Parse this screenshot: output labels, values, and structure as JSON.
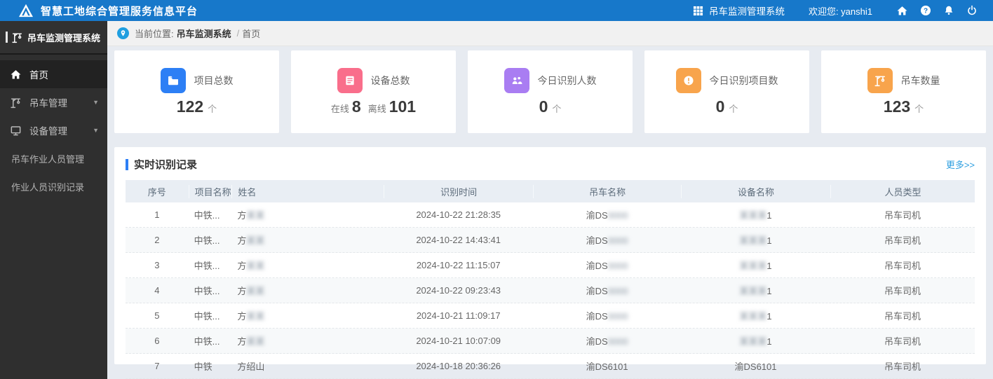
{
  "colors": {
    "topbar_blue": "#1778ca",
    "accent_blue": "#2d7ff5",
    "link_blue": "#2e9fe0",
    "sidebar_dark": "#2f2f2f"
  },
  "topbar": {
    "title": "智慧工地综合管理服务信息平台",
    "system_switcher": "吊车监测管理系统",
    "welcome": "欢迎您: yanshi1",
    "icons": [
      "grid-icon",
      "home-icon",
      "question-icon",
      "bell-icon",
      "power-icon"
    ]
  },
  "sidebar": {
    "title": "吊车监测管理系统",
    "items": [
      {
        "label": "首页",
        "icon": "home",
        "active": true,
        "has_arrow": false,
        "sub": false
      },
      {
        "label": "吊车管理",
        "icon": "crane",
        "active": false,
        "has_arrow": true,
        "sub": false
      },
      {
        "label": "设备管理",
        "icon": "monitor",
        "active": false,
        "has_arrow": true,
        "sub": false
      },
      {
        "label": "吊车作业人员管理",
        "icon": null,
        "active": false,
        "has_arrow": false,
        "sub": true
      },
      {
        "label": "作业人员识别记录",
        "icon": null,
        "active": false,
        "has_arrow": false,
        "sub": true
      }
    ]
  },
  "breadcrumb": {
    "prefix": "当前位置:",
    "section": "吊车监测系统",
    "separator": "/",
    "current": "首页"
  },
  "stats": [
    {
      "label": "项目总数",
      "icon": "folder-icon",
      "color": "#2d7ff5",
      "value": "122",
      "unit": "个"
    },
    {
      "label": "设备总数",
      "icon": "list-icon",
      "color": "#f96e8b",
      "online_label": "在线",
      "online": "8",
      "offline_label": "离线",
      "offline": "101"
    },
    {
      "label": "今日识别人数",
      "icon": "people-icon",
      "color": "#a97df2",
      "value": "0",
      "unit": "个"
    },
    {
      "label": "今日识别项目数",
      "icon": "alert-icon",
      "color": "#f8a44c",
      "value": "0",
      "unit": "个"
    },
    {
      "label": "吊车数量",
      "icon": "crane-icon",
      "color": "#f8a44c",
      "value": "123",
      "unit": "个"
    }
  ],
  "records": {
    "title": "实时识别记录",
    "more": "更多>>",
    "columns": [
      "序号",
      "项目名称",
      "姓名",
      "识别时间",
      "吊车名称",
      "设备名称",
      "人员类型"
    ],
    "rows": [
      {
        "seq": "1",
        "project": "中铁...",
        "name_prefix": "方",
        "name_blur": "某某",
        "time": "2024-10-22 21:28:35",
        "crane_prefix": "渝DS",
        "crane_blur": "0000",
        "device_prefix": "",
        "device_blur": "某某某",
        "device_suffix": "1",
        "type": "吊车司机"
      },
      {
        "seq": "2",
        "project": "中铁...",
        "name_prefix": "方",
        "name_blur": "某某",
        "time": "2024-10-22 14:43:41",
        "crane_prefix": "渝DS",
        "crane_blur": "0000",
        "device_prefix": "",
        "device_blur": "某某某",
        "device_suffix": "1",
        "type": "吊车司机"
      },
      {
        "seq": "3",
        "project": "中铁...",
        "name_prefix": "方",
        "name_blur": "某某",
        "time": "2024-10-22 11:15:07",
        "crane_prefix": "渝DS",
        "crane_blur": "0000",
        "device_prefix": "",
        "device_blur": "某某某",
        "device_suffix": "1",
        "type": "吊车司机"
      },
      {
        "seq": "4",
        "project": "中铁...",
        "name_prefix": "方",
        "name_blur": "某某",
        "time": "2024-10-22 09:23:43",
        "crane_prefix": "渝DS",
        "crane_blur": "0000",
        "device_prefix": "",
        "device_blur": "某某某",
        "device_suffix": "1",
        "type": "吊车司机"
      },
      {
        "seq": "5",
        "project": "中铁...",
        "name_prefix": "方",
        "name_blur": "某某",
        "time": "2024-10-21 11:09:17",
        "crane_prefix": "渝DS",
        "crane_blur": "0000",
        "device_prefix": "",
        "device_blur": "某某某",
        "device_suffix": "1",
        "type": "吊车司机"
      },
      {
        "seq": "6",
        "project": "中铁...",
        "name_prefix": "方",
        "name_blur": "某某",
        "time": "2024-10-21 10:07:09",
        "crane_prefix": "渝DS",
        "crane_blur": "0000",
        "device_prefix": "",
        "device_blur": "某某某",
        "device_suffix": "1",
        "type": "吊车司机"
      },
      {
        "seq": "7",
        "project": "中铁",
        "name_prefix": "方绍山",
        "name_blur": "",
        "time": "2024-10-18 20:36:26",
        "crane_prefix": "渝DS6101",
        "crane_blur": "",
        "device_prefix": "渝DS6101",
        "device_blur": "",
        "device_suffix": "",
        "type": "吊车司机"
      }
    ]
  }
}
